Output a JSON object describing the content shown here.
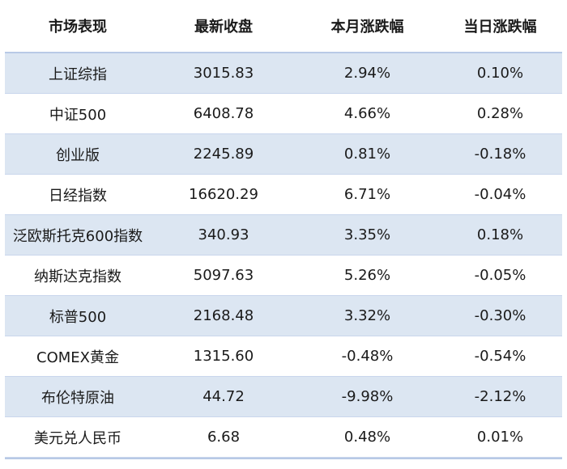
{
  "table": {
    "headers": [
      "市场表现",
      "最新收盘",
      "本月涨跌幅",
      "当日涨跌幅"
    ],
    "rows": [
      [
        "上证综指",
        "3015.83",
        "2.94%",
        "0.10%"
      ],
      [
        "中证500",
        "6408.78",
        "4.66%",
        "0.28%"
      ],
      [
        "创业版",
        "2245.89",
        "0.81%",
        "-0.18%"
      ],
      [
        "日经指数",
        "16620.29",
        "6.71%",
        "-0.04%"
      ],
      [
        "泛欧斯托克600指数",
        "340.93",
        "3.35%",
        "0.18%"
      ],
      [
        "纳斯达克指数",
        "5097.63",
        "5.26%",
        "-0.05%"
      ],
      [
        "标普500",
        "2168.48",
        "3.32%",
        "-0.30%"
      ],
      [
        "COMEX黄金",
        "1315.60",
        "-0.48%",
        "-0.54%"
      ],
      [
        "布伦特原油",
        "44.72",
        "-9.98%",
        "-2.12%"
      ],
      [
        "美元兑人民币",
        "6.68",
        "0.48%",
        "0.01%"
      ]
    ],
    "shaded_color": "#dce6f2",
    "border_color": "#c9d6ec"
  }
}
